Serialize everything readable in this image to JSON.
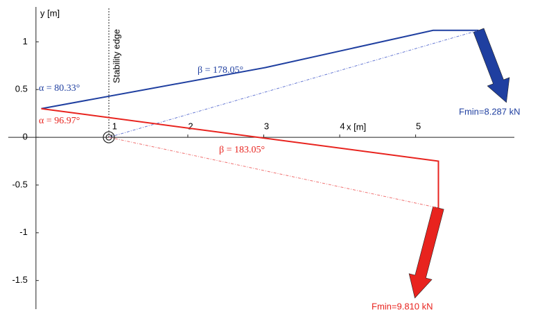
{
  "chart_data": {
    "type": "line",
    "x_label": "y [m]",
    "x_axis_label": "x [m]",
    "xlim": [
      -0.3,
      6.3
    ],
    "xticks": [
      1,
      2,
      3,
      4,
      5
    ],
    "ylim": [
      -1.8,
      1.3
    ],
    "yticks": [
      1,
      0.5,
      0,
      -0.5,
      -1,
      -1.5
    ],
    "stability_edge": {
      "x": 0.96,
      "label": "Stability edge"
    },
    "series": [
      {
        "color": "#1f3fa0",
        "dashed": false,
        "arrow": true,
        "x": [
          0.07,
          3.02,
          5.23,
          5.83
        ],
        "values": [
          0.3,
          0.73,
          1.12,
          1.12
        ]
      },
      {
        "color": "#5a6ed0",
        "dashed": true,
        "arrow": false,
        "x": [
          0.96,
          5.83
        ],
        "values": [
          0,
          1.12
        ]
      },
      {
        "color": "#e8231e",
        "dashed": false,
        "arrow": true,
        "x": [
          0.07,
          5.3,
          5.3
        ],
        "values": [
          0.3,
          -0.25,
          -0.74
        ]
      },
      {
        "color": "#f07070",
        "dashed": true,
        "arrow": false,
        "x": [
          0.96,
          5.3
        ],
        "values": [
          0,
          -0.74
        ]
      }
    ],
    "annotations": [
      "α = 80.33°",
      "β = 178.05°",
      "α = 96.97°",
      "β = 183.05°",
      "Fmin=8.287 kN",
      "Fmin=9.810 kN"
    ]
  }
}
